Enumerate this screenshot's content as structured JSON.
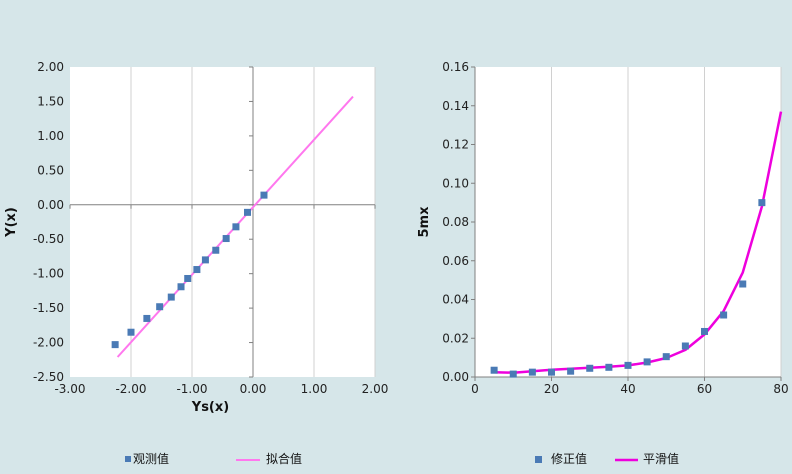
{
  "colors": {
    "background": "#d6e6e9",
    "plot_bg": "#ffffff",
    "marker": "#4a7ab5",
    "fit_line_left": "#ff77ee",
    "fit_line_right": "#ee00dd",
    "grid": "#d0d0d0",
    "axis": "#808080"
  },
  "chart_data": [
    {
      "type": "scatter",
      "title": "",
      "xlabel": "Ys(x)",
      "ylabel": "Y(x)",
      "xlim": [
        -3.0,
        2.0
      ],
      "ylim": [
        -2.5,
        2.0
      ],
      "xticks": [
        "-3.00",
        "-2.00",
        "-1.00",
        "0.00",
        "1.00",
        "2.00"
      ],
      "yticks": [
        "2.00",
        "1.50",
        "1.00",
        "0.50",
        "0.00",
        "-0.50",
        "-1.00",
        "-1.50",
        "-2.00",
        "-2.50"
      ],
      "grid": "vertical",
      "legend": "bottom",
      "series": [
        {
          "name": "观测值",
          "type": "scatter",
          "points": [
            [
              -2.26,
              -2.03
            ],
            [
              -2.0,
              -1.85
            ],
            [
              -1.74,
              -1.65
            ],
            [
              -1.53,
              -1.48
            ],
            [
              -1.34,
              -1.34
            ],
            [
              -1.18,
              -1.19
            ],
            [
              -1.07,
              -1.07
            ],
            [
              -0.92,
              -0.94
            ],
            [
              -0.78,
              -0.8
            ],
            [
              -0.61,
              -0.66
            ],
            [
              -0.44,
              -0.49
            ],
            [
              -0.28,
              -0.32
            ],
            [
              -0.09,
              -0.11
            ],
            [
              0.18,
              0.14
            ]
          ]
        },
        {
          "name": "拟合值",
          "type": "line",
          "points": [
            [
              -2.22,
              -2.21
            ],
            [
              1.64,
              1.57
            ]
          ]
        }
      ]
    },
    {
      "type": "scatter",
      "title": "",
      "xlabel": "",
      "ylabel": "5mx",
      "xlim": [
        0,
        80
      ],
      "ylim": [
        0,
        0.16
      ],
      "xticks": [
        "0",
        "20",
        "40",
        "60",
        "80"
      ],
      "yticks": [
        "0.16",
        "0.14",
        "0.12",
        "0.10",
        "0.08",
        "0.06",
        "0.04",
        "0.02",
        "0.00"
      ],
      "grid": "vertical",
      "legend": "bottom",
      "series": [
        {
          "name": "修正值",
          "type": "scatter",
          "points": [
            [
              5,
              0.0035
            ],
            [
              10,
              0.0015
            ],
            [
              15,
              0.0025
            ],
            [
              20,
              0.0025
            ],
            [
              25,
              0.003
            ],
            [
              30,
              0.0045
            ],
            [
              35,
              0.005
            ],
            [
              40,
              0.006
            ],
            [
              45,
              0.0078
            ],
            [
              50,
              0.0105
            ],
            [
              55,
              0.016
            ],
            [
              60,
              0.0235
            ],
            [
              65,
              0.032
            ],
            [
              70,
              0.048
            ],
            [
              75,
              0.09
            ]
          ]
        },
        {
          "name": "平滑值",
          "type": "line",
          "points": [
            [
              5,
              0.0025
            ],
            [
              10,
              0.0022
            ],
            [
              15,
              0.003
            ],
            [
              20,
              0.0037
            ],
            [
              25,
              0.0043
            ],
            [
              30,
              0.0048
            ],
            [
              35,
              0.0053
            ],
            [
              40,
              0.006
            ],
            [
              45,
              0.0075
            ],
            [
              50,
              0.0098
            ],
            [
              55,
              0.014
            ],
            [
              60,
              0.022
            ],
            [
              65,
              0.034
            ],
            [
              70,
              0.054
            ],
            [
              75,
              0.088
            ],
            [
              80,
              0.137
            ]
          ]
        }
      ]
    }
  ]
}
